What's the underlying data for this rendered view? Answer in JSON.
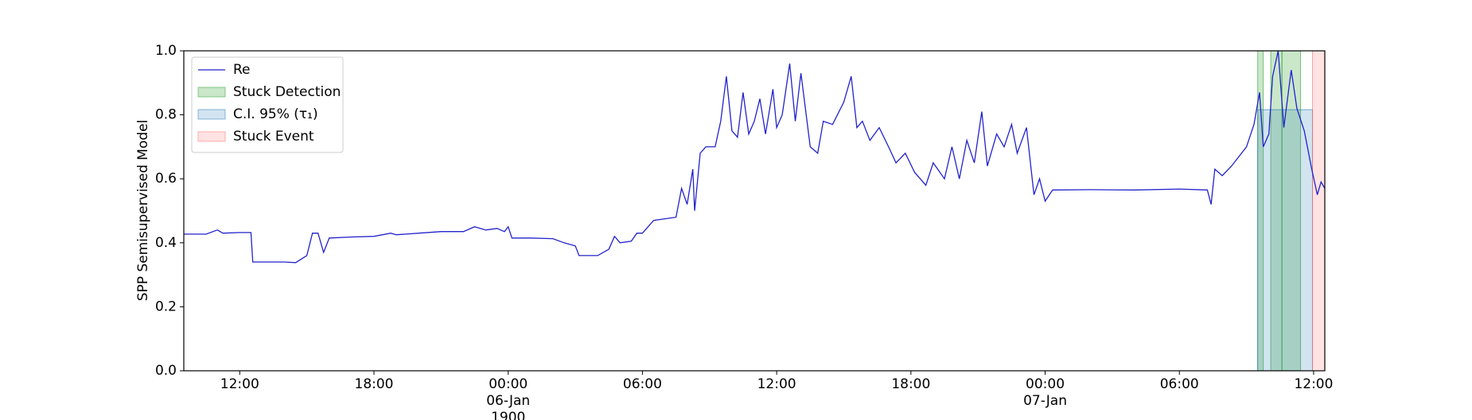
{
  "chart_data": {
    "type": "line",
    "y_label": "SPP Semisupervised Model",
    "ylim": [
      0,
      1
    ],
    "yticks": [
      {
        "value": 0,
        "label": "0.0"
      },
      0.2,
      0.4,
      0.6,
      0.8,
      {
        "value": 1,
        "label": "1.0"
      }
    ],
    "xlim": [
      "1900-01-05 09:30",
      "1900-01-07 12:30"
    ],
    "xticks": [
      {
        "value": "1900-01-05 12:00",
        "label": "12:00"
      },
      {
        "value": "1900-01-05 18:00",
        "label": "18:00"
      },
      {
        "value": "1900-01-06 00:00",
        "label": "00:00\n06-Jan\n1900"
      },
      {
        "value": "1900-01-06 06:00",
        "label": "06:00"
      },
      {
        "value": "1900-01-06 12:00",
        "label": "12:00"
      },
      {
        "value": "1900-01-06 18:00",
        "label": "18:00"
      },
      {
        "value": "1900-01-07 00:00",
        "label": "00:00\n07-Jan"
      },
      {
        "value": "1900-01-07 06:00",
        "label": "06:00"
      },
      {
        "value": "1900-01-07 12:00",
        "label": "12:00"
      }
    ],
    "legend": "upper left",
    "x": [
      "1900-01-05 09:30",
      "1900-01-05 10:30",
      "1900-01-05 11:00",
      "1900-01-05 11:15",
      "1900-01-05 12:00",
      "1900-01-05 12:30",
      "1900-01-05 12:35",
      "1900-01-05 14:00",
      "1900-01-05 14:30",
      "1900-01-05 15:00",
      "1900-01-05 15:15",
      "1900-01-05 15:30",
      "1900-01-05 15:45",
      "1900-01-05 16:00",
      "1900-01-05 17:00",
      "1900-01-05 18:00",
      "1900-01-05 18:45",
      "1900-01-05 19:00",
      "1900-01-05 20:00",
      "1900-01-05 21:00",
      "1900-01-05 22:00",
      "1900-01-05 22:30",
      "1900-01-05 23:00",
      "1900-01-05 23:30",
      "1900-01-05 23:50",
      "1900-01-06 00:00",
      "1900-01-06 00:10",
      "1900-01-06 01:00",
      "1900-01-06 02:00",
      "1900-01-06 02:30",
      "1900-01-06 03:00",
      "1900-01-06 03:10",
      "1900-01-06 04:00",
      "1900-01-06 04:30",
      "1900-01-06 04:45",
      "1900-01-06 05:00",
      "1900-01-06 05:30",
      "1900-01-06 05:45",
      "1900-01-06 06:00",
      "1900-01-06 06:30",
      "1900-01-06 07:00",
      "1900-01-06 07:30",
      "1900-01-06 07:45",
      "1900-01-06 08:00",
      "1900-01-06 08:15",
      "1900-01-06 08:20",
      "1900-01-06 08:35",
      "1900-01-06 08:50",
      "1900-01-06 09:15",
      "1900-01-06 09:30",
      "1900-01-06 09:45",
      "1900-01-06 10:00",
      "1900-01-06 10:15",
      "1900-01-06 10:30",
      "1900-01-06 10:45",
      "1900-01-06 11:00",
      "1900-01-06 11:15",
      "1900-01-06 11:30",
      "1900-01-06 11:50",
      "1900-01-06 12:00",
      "1900-01-06 12:15",
      "1900-01-06 12:35",
      "1900-01-06 12:50",
      "1900-01-06 13:05",
      "1900-01-06 13:30",
      "1900-01-06 13:50",
      "1900-01-06 14:05",
      "1900-01-06 14:30",
      "1900-01-06 15:00",
      "1900-01-06 15:20",
      "1900-01-06 15:35",
      "1900-01-06 15:50",
      "1900-01-06 16:10",
      "1900-01-06 16:35",
      "1900-01-06 17:00",
      "1900-01-06 17:20",
      "1900-01-06 17:45",
      "1900-01-06 18:10",
      "1900-01-06 18:40",
      "1900-01-06 19:00",
      "1900-01-06 19:30",
      "1900-01-06 19:50",
      "1900-01-06 20:10",
      "1900-01-06 20:30",
      "1900-01-06 20:50",
      "1900-01-06 21:10",
      "1900-01-06 21:25",
      "1900-01-06 21:50",
      "1900-01-06 22:10",
      "1900-01-06 22:30",
      "1900-01-06 22:45",
      "1900-01-06 23:10",
      "1900-01-06 23:30",
      "1900-01-06 23:45",
      "1900-01-07 00:00",
      "1900-01-07 00:20",
      "1900-01-07 02:00",
      "1900-01-07 04:00",
      "1900-01-07 06:00",
      "1900-01-07 07:15",
      "1900-01-07 07:25",
      "1900-01-07 07:35",
      "1900-01-07 07:55",
      "1900-01-07 08:20",
      "1900-01-07 09:00",
      "1900-01-07 09:20",
      "1900-01-07 09:35",
      "1900-01-07 09:45",
      "1900-01-07 10:00",
      "1900-01-07 10:10",
      "1900-01-07 10:25",
      "1900-01-07 10:40",
      "1900-01-07 11:00",
      "1900-01-07 11:15",
      "1900-01-07 11:35",
      "1900-01-07 11:55",
      "1900-01-07 12:10",
      "1900-01-07 12:20",
      "1900-01-07 12:30"
    ],
    "series": [
      {
        "name": "Re",
        "color": "#2222cc",
        "values": [
          0.427,
          0.427,
          0.44,
          0.43,
          0.432,
          0.432,
          0.34,
          0.34,
          0.338,
          0.36,
          0.43,
          0.43,
          0.37,
          0.415,
          0.418,
          0.42,
          0.43,
          0.425,
          0.43,
          0.435,
          0.435,
          0.45,
          0.44,
          0.445,
          0.435,
          0.45,
          0.415,
          0.415,
          0.413,
          0.4,
          0.39,
          0.36,
          0.36,
          0.38,
          0.42,
          0.4,
          0.405,
          0.43,
          0.43,
          0.47,
          0.475,
          0.48,
          0.57,
          0.52,
          0.63,
          0.5,
          0.68,
          0.7,
          0.7,
          0.78,
          0.92,
          0.75,
          0.73,
          0.87,
          0.74,
          0.78,
          0.85,
          0.74,
          0.88,
          0.76,
          0.8,
          0.96,
          0.78,
          0.93,
          0.7,
          0.68,
          0.78,
          0.77,
          0.84,
          0.92,
          0.76,
          0.78,
          0.72,
          0.76,
          0.7,
          0.65,
          0.68,
          0.62,
          0.58,
          0.65,
          0.6,
          0.7,
          0.6,
          0.72,
          0.65,
          0.81,
          0.64,
          0.74,
          0.7,
          0.77,
          0.68,
          0.76,
          0.55,
          0.6,
          0.53,
          0.565,
          0.566,
          0.565,
          0.568,
          0.565,
          0.52,
          0.63,
          0.61,
          0.64,
          0.7,
          0.77,
          0.87,
          0.7,
          0.74,
          0.92,
          1.0,
          0.76,
          0.94,
          0.82,
          0.75,
          0.63,
          0.55,
          0.59,
          0.57
        ]
      }
    ],
    "spans": [
      {
        "name": "Stuck Detection",
        "color": "#2ca02c",
        "opacity": 0.25,
        "ranges": [
          [
            "1900-01-07 09:30",
            "1900-01-07 09:45"
          ],
          [
            "1900-01-07 10:05",
            "1900-01-07 10:35"
          ],
          [
            "1900-01-07 10:35",
            "1900-01-07 11:25"
          ]
        ]
      },
      {
        "name": "C.I. 95% (τ₁)",
        "color": "#1f77b4",
        "opacity": 0.2,
        "top": 0.816,
        "ranges": [
          [
            "1900-01-07 09:30",
            "1900-01-07 11:57"
          ]
        ]
      },
      {
        "name": "Stuck Event",
        "color": "#ff6666",
        "opacity": 0.18,
        "ranges": [
          [
            "1900-01-07 11:57",
            "1900-01-07 12:30"
          ]
        ]
      }
    ]
  }
}
